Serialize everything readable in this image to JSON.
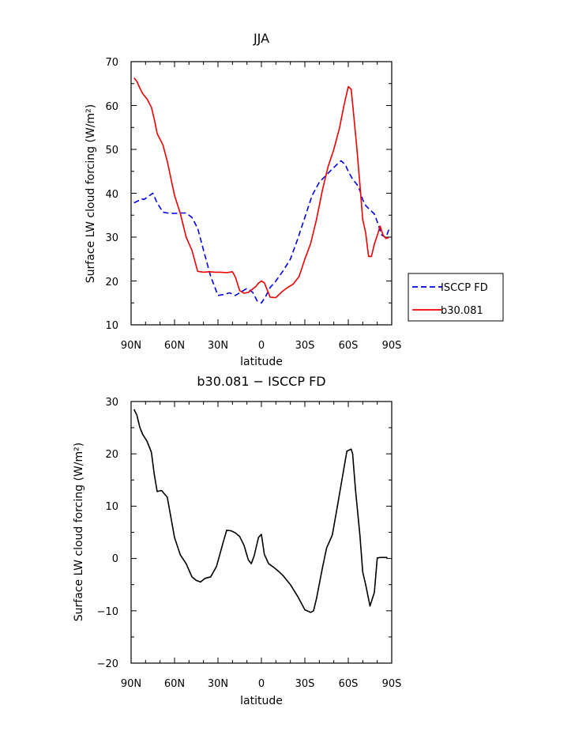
{
  "chart_data": [
    {
      "type": "line",
      "title": "JJA",
      "xlabel": "latitude",
      "ylabel": "Surface LW cloud forcing (W/m²)",
      "xlim": [
        90,
        -90
      ],
      "ylim": [
        10,
        70
      ],
      "x_ticks": [
        90,
        60,
        30,
        0,
        -30,
        -60,
        -90
      ],
      "x_tick_labels": [
        "90N",
        "60N",
        "30N",
        "0",
        "30S",
        "60S",
        "90S"
      ],
      "y_ticks": [
        10,
        20,
        30,
        40,
        50,
        60,
        70
      ],
      "y_tick_labels": [
        "10",
        "20",
        "30",
        "40",
        "50",
        "60",
        "70"
      ],
      "legend": {
        "placement": "right",
        "entries": [
          "ISCCP FD",
          "b30.081"
        ]
      },
      "series": [
        {
          "name": "ISCCP FD",
          "color": "#0000ee",
          "dash": "dashed",
          "x": [
            88,
            85,
            83,
            81,
            78,
            75,
            72,
            68,
            65,
            60,
            55,
            52,
            48,
            44,
            40,
            35,
            30,
            26,
            22,
            18,
            14,
            10,
            6,
            3,
            0,
            -3,
            -6,
            -10,
            -15,
            -20,
            -25,
            -30,
            -35,
            -40,
            -45,
            -48,
            -52,
            -55,
            -58,
            -60,
            -63,
            -66,
            -68,
            -70,
            -72,
            -75,
            -78,
            -80,
            -83,
            -86,
            -88
          ],
          "y": [
            37.8,
            38.3,
            38.7,
            38.6,
            39.3,
            40,
            37.8,
            35.7,
            35.5,
            35.4,
            35.5,
            35.5,
            34.5,
            32,
            27,
            21,
            16.7,
            16.9,
            17.3,
            16.7,
            17.5,
            18.3,
            17.4,
            15.5,
            15,
            16.5,
            18.5,
            20,
            22.3,
            25,
            29.5,
            34.5,
            39.5,
            42.5,
            44.2,
            45.2,
            46.5,
            47.4,
            46.5,
            45,
            43.2,
            42,
            40.6,
            38.5,
            37.2,
            36.2,
            35.3,
            33.5,
            30.5,
            29.9,
            31.7
          ]
        },
        {
          "name": "b30.081",
          "color": "#ee0000",
          "dash": "solid",
          "x": [
            88,
            86,
            84,
            82,
            79,
            76,
            74,
            72,
            68,
            65,
            60,
            56,
            52,
            48,
            44,
            40,
            36,
            32,
            28,
            24,
            20,
            18,
            15,
            12,
            9,
            6,
            4,
            2,
            0,
            -2,
            -4,
            -6,
            -10,
            -14,
            -18,
            -22,
            -26,
            -30,
            -34,
            -38,
            -42,
            -46,
            -50,
            -54,
            -57,
            -60,
            -62,
            -64,
            -66,
            -68,
            -70,
            -72,
            -74,
            -76,
            -78,
            -80,
            -82,
            -84,
            -86,
            -88
          ],
          "y": [
            66.3,
            65.5,
            64,
            62.7,
            61.5,
            59.6,
            56.9,
            53.6,
            51,
            47.3,
            39.5,
            35.4,
            30,
            27,
            22.2,
            22,
            22.1,
            22,
            22,
            21.9,
            22.1,
            20.9,
            17.8,
            17.2,
            17.4,
            18.2,
            18.7,
            19.5,
            20,
            19.6,
            18,
            16.3,
            16.2,
            17.5,
            18.5,
            19.3,
            21,
            25,
            28.5,
            34,
            40.5,
            46,
            50,
            55,
            60,
            64.3,
            63.7,
            57,
            50,
            42,
            34,
            31,
            25.6,
            25.6,
            28.4,
            30.4,
            32.5,
            30.5,
            29.7,
            29.9
          ]
        }
      ]
    },
    {
      "type": "line",
      "title": "b30.081 − ISCCP FD",
      "xlabel": "latitude",
      "ylabel": "Surface LW cloud forcing (W/m²)",
      "xlim": [
        90,
        -90
      ],
      "ylim": [
        -20,
        30
      ],
      "x_ticks": [
        90,
        60,
        30,
        0,
        -30,
        -60,
        -90
      ],
      "x_tick_labels": [
        "90N",
        "60N",
        "30N",
        "0",
        "30S",
        "60S",
        "90S"
      ],
      "y_ticks": [
        -20,
        -10,
        0,
        10,
        20,
        30
      ],
      "y_tick_labels": [
        "−20",
        "−10",
        "0",
        "10",
        "20",
        "30"
      ],
      "series": [
        {
          "color": "#000000",
          "dash": "solid",
          "x": [
            88,
            86,
            84,
            82,
            79,
            76,
            74,
            72,
            69,
            65,
            60,
            56,
            52,
            48,
            45,
            42,
            39,
            35,
            31,
            27,
            24,
            21,
            18,
            15,
            12,
            9,
            7,
            5,
            2,
            0,
            -2,
            -5,
            -9,
            -12,
            -15,
            -20,
            -25,
            -30,
            -34,
            -36,
            -38,
            -42,
            -45,
            -49,
            -52,
            -55,
            -59,
            -62,
            -63,
            -65,
            -68,
            -70,
            -72,
            -75,
            -78,
            -80,
            -82,
            -84,
            -87
          ],
          "y": [
            28.5,
            27.4,
            25.1,
            23.7,
            22.4,
            20.3,
            16.1,
            12.8,
            13,
            11.7,
            4,
            0.7,
            -1,
            -3.5,
            -4.2,
            -4.5,
            -3.8,
            -3.5,
            -1.5,
            2.5,
            5.4,
            5.3,
            4.9,
            4.2,
            2.5,
            -0.3,
            -1,
            0.5,
            4,
            4.6,
            0.8,
            -1,
            -1.8,
            -2.5,
            -3.3,
            -5,
            -7.2,
            -9.8,
            -10.3,
            -10,
            -7.7,
            -2,
            2,
            4.5,
            9.2,
            14,
            20.5,
            20.9,
            20,
            13,
            4.5,
            -2.6,
            -5,
            -9.1,
            -6.5,
            0.1,
            0.2,
            0.2,
            0.2
          ]
        }
      ]
    }
  ]
}
